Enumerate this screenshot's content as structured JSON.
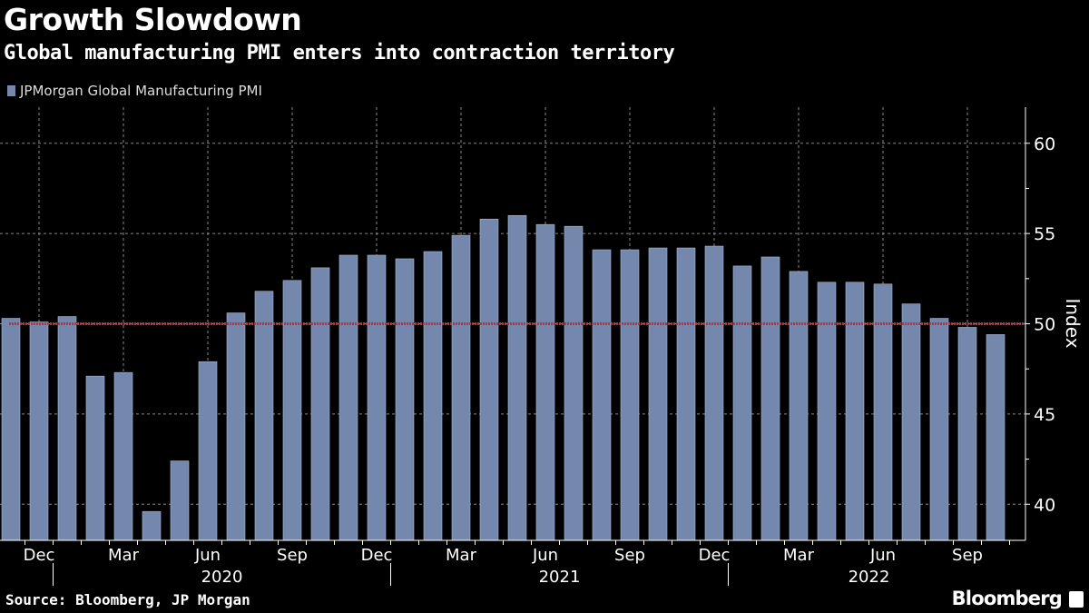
{
  "header": {
    "title": "Growth Slowdown",
    "subtitle": "Global manufacturing PMI enters into contraction territory"
  },
  "footer": {
    "source": "Source: Bloomberg, JP Morgan",
    "brand": "Bloomberg",
    "brand_icon": "bloomberg-chart-icon"
  },
  "chart_data": {
    "type": "bar",
    "title": "Growth Slowdown",
    "subtitle": "Global manufacturing PMI enters into contraction territory",
    "ylabel": "Index",
    "xlabel": "",
    "legend": {
      "position": "top-left",
      "entries": [
        "JPMorgan Global Manufacturing PMI"
      ]
    },
    "grid": true,
    "ylim": [
      38,
      62
    ],
    "yticks": [
      40,
      45,
      50,
      55,
      60
    ],
    "reference_line": {
      "value": 50,
      "color": "#c0303a",
      "style": "dotted"
    },
    "bar_color": "#7488ad",
    "categories": [
      "2019-11",
      "2019-12",
      "2020-01",
      "2020-02",
      "2020-03",
      "2020-04",
      "2020-05",
      "2020-06",
      "2020-07",
      "2020-08",
      "2020-09",
      "2020-10",
      "2020-11",
      "2020-12",
      "2021-01",
      "2021-02",
      "2021-03",
      "2021-04",
      "2021-05",
      "2021-06",
      "2021-07",
      "2021-08",
      "2021-09",
      "2021-10",
      "2021-11",
      "2021-12",
      "2022-01",
      "2022-02",
      "2022-03",
      "2022-04",
      "2022-05",
      "2022-06",
      "2022-07",
      "2022-08",
      "2022-09",
      "2022-10"
    ],
    "series": [
      {
        "name": "JPMorgan Global Manufacturing PMI",
        "values": [
          50.3,
          50.1,
          50.4,
          47.1,
          47.3,
          39.6,
          42.4,
          47.9,
          50.6,
          51.8,
          52.4,
          53.1,
          53.8,
          53.8,
          53.6,
          54.0,
          54.9,
          55.8,
          56.0,
          55.5,
          55.4,
          54.1,
          54.1,
          54.2,
          54.2,
          54.3,
          53.2,
          53.7,
          52.9,
          52.3,
          52.3,
          52.2,
          51.1,
          50.3,
          49.8,
          49.4
        ]
      }
    ],
    "month_labels": [
      {
        "index": 1,
        "label": "Dec"
      },
      {
        "index": 4,
        "label": "Mar"
      },
      {
        "index": 7,
        "label": "Jun"
      },
      {
        "index": 10,
        "label": "Sep"
      },
      {
        "index": 13,
        "label": "Dec"
      },
      {
        "index": 16,
        "label": "Mar"
      },
      {
        "index": 19,
        "label": "Jun"
      },
      {
        "index": 22,
        "label": "Sep"
      },
      {
        "index": 25,
        "label": "Dec"
      },
      {
        "index": 28,
        "label": "Mar"
      },
      {
        "index": 31,
        "label": "Jun"
      },
      {
        "index": 34,
        "label": "Sep"
      }
    ],
    "year_labels": [
      {
        "start": 2,
        "end": 13,
        "label": "2020"
      },
      {
        "start": 14,
        "end": 25,
        "label": "2021"
      },
      {
        "start": 26,
        "end": 35,
        "label": "2022"
      }
    ]
  }
}
